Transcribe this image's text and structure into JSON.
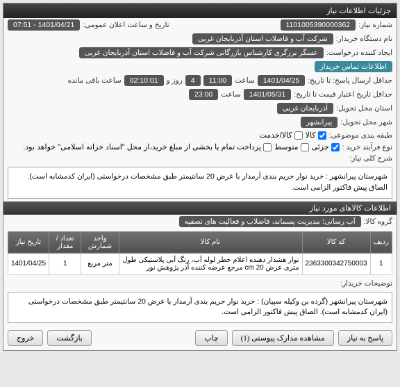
{
  "panel_title": "جزئیات اطلاعات نیاز",
  "fields": {
    "need_number_label": "شماره نیاز:",
    "need_number": "1101005390000362",
    "announce_date_label": "تاریخ و ساعت اعلان عمومی:",
    "announce_date": "1401/04/21 - 07:51",
    "buyer_device_label": "نام دستگاه خریدار:",
    "buyer_device": "شرکت آب و فاضلاب استان آذربایجان غربی",
    "request_creator_label": "ایجاد کننده درخواست:",
    "request_creator": "عسگر برزگری کارشناس بازرگانی شرکت آب و فاضلاب استان آذربایجان غربی",
    "contact_info": "اطلاعات تماس خریدار",
    "deadline_label": "حداقل ارسال پاسخ: تا تاریخ:",
    "deadline_date": "1401/04/25",
    "deadline_hour_label": "ساعت",
    "deadline_hour": "11:00",
    "days_label": "روز و",
    "days": "4",
    "time_remaining": "02:10:01",
    "time_remaining_label": "ساعت باقی مانده",
    "validity_label": "حداقل تاریخ اعتبار قیمت تا تاریخ:",
    "validity_date": "1401/05/31",
    "validity_hour_label": "ساعت",
    "validity_hour": "23:00",
    "province_label": "استان محل تحویل:",
    "province": "آذربایجان غربی",
    "city_label": "شهر محل تحویل:",
    "city": "پیرانشهر",
    "category_label": "طبقه بندی موضوعی:",
    "cat_goods": "کالا",
    "cat_service": "کالا/خدمت",
    "process_label": "نوع فرآیند خرید :",
    "proc_partial": "جزئی",
    "proc_mid": "متوسط",
    "payment_note": "پرداخت تمام یا بخشی از مبلغ خرید،از محل \"اسناد خزانه اسلامی\" خواهد بود.",
    "general_desc_label": "شرح کلی نیاز:",
    "general_desc": "شهرستان پیرانشهر : خرید نوار حریم بندی آرمدار با عرض 20 سانتیمتر طبق مشخصات درخواستی (ایران کدمشابه است). الصاق پیش فاکتور الزامی است.",
    "goods_info_header": "اطلاعات کالاهای مورد نیاز",
    "goods_group_label": "گروه کالا:",
    "goods_group": "آب رسانی؛ مدیریت پسماند، فاضلاب و فعالیت های تصفیه",
    "buyer_notes_label": "توضیحات خریدار:",
    "buyer_notes": "شهرستان پیرانشهر (گرده بن وکیله سپیان) : خرید نوار حریم بندی آرمدار با عرض 20 سانتیمتر طبق مشخصات درخواستی (ایران کدمشابه است). الصاق پیش فاکتور الزامی است."
  },
  "table": {
    "headers": {
      "row": "ردیف",
      "code": "کد کالا",
      "name": "نام کالا",
      "unit": "واحد شمارش",
      "qty": "تعداد / مقدار",
      "date": "تاریخ نیاز"
    },
    "rows": [
      {
        "row": "1",
        "code": "2363300342750003",
        "name": "نوار هشدار دهنده اعلام خطر لوله آب، رنگ آبی پلاستیکی طول متری عرض cm 20 مرجع عرضه کننده آذر پژوهش نور",
        "unit": "متر مربع",
        "qty": "1",
        "date": "1401/04/25"
      }
    ]
  },
  "buttons": {
    "reply": "پاسخ به نیاز",
    "attachments": "مشاهده مدارک پیوستی (1)",
    "print": "چاپ",
    "back": "بازگشت",
    "exit": "خروج"
  }
}
